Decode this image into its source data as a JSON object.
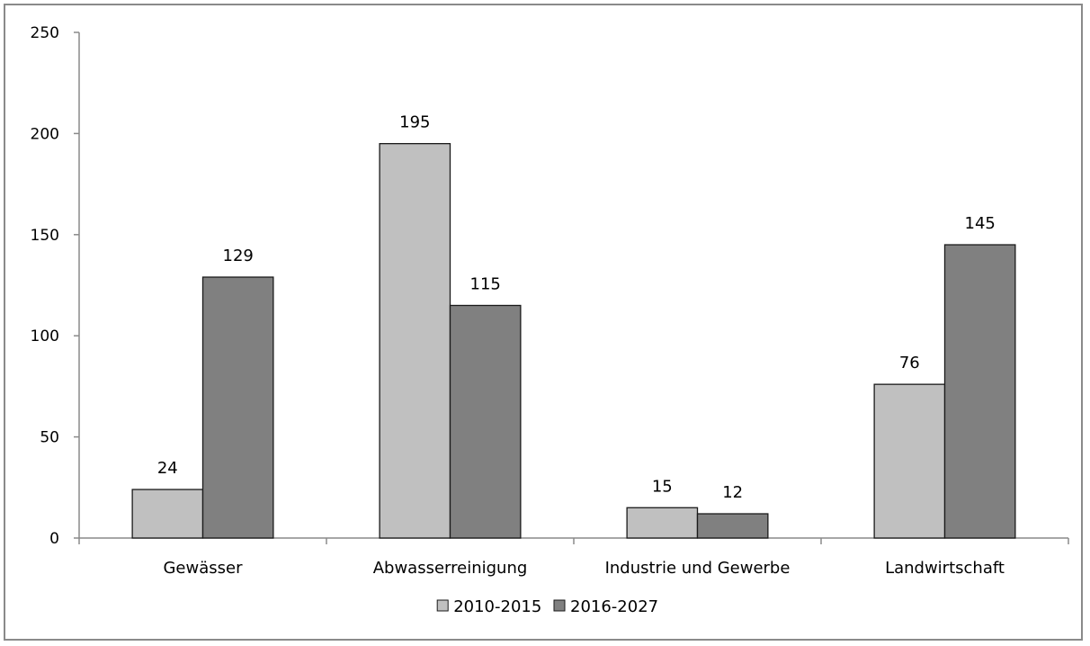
{
  "chart_data": {
    "type": "bar",
    "title": "",
    "xlabel": "",
    "ylabel": "",
    "categories": [
      "Gewässer",
      "Abwasserreinigung",
      "Industrie und Gewerbe",
      "Landwirtschaft"
    ],
    "series": [
      {
        "name": "2010-2015",
        "values": [
          24,
          195,
          15,
          76
        ],
        "color": "#c0c0c0"
      },
      {
        "name": "2016-2027",
        "values": [
          129,
          115,
          12,
          145
        ],
        "color": "#808080"
      }
    ],
    "ylim": [
      0,
      250
    ],
    "yticks": [
      0,
      50,
      100,
      150,
      200,
      250
    ],
    "ytick_labels": [
      "0",
      "50",
      "100",
      "150",
      "200",
      "250"
    ],
    "data_labels": [
      [
        "24",
        "195",
        "15",
        "76"
      ],
      [
        "129",
        "115",
        "12",
        "145"
      ]
    ],
    "grid": false,
    "legend_position": "bottom"
  }
}
